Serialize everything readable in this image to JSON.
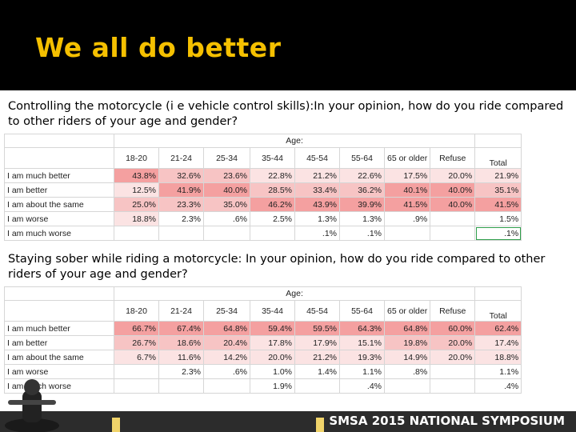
{
  "slide": {
    "title": "We all do better",
    "footer": "SMSA 2015 NATIONAL SYMPOSIUM"
  },
  "question1": "Controlling the motorcycle (i e vehicle control skills):In your opinion, how do you ride compared to other riders of your age and gender?",
  "question2": "Staying sober while riding a motorcycle: In your opinion, how do you ride compared to other riders of your age and gender?",
  "table1": {
    "age_header": "Age:",
    "columns": [
      "18-20",
      "21-24",
      "25-34",
      "35-44",
      "45-54",
      "55-64",
      "65 or older",
      "Refuse",
      "Total"
    ],
    "rows": [
      {
        "label": "I am much better",
        "cells": [
          "43.8%",
          "32.6%",
          "23.6%",
          "22.8%",
          "21.2%",
          "22.6%",
          "17.5%",
          "20.0%",
          "21.9%"
        ]
      },
      {
        "label": "I am better",
        "cells": [
          "12.5%",
          "41.9%",
          "40.0%",
          "28.5%",
          "33.4%",
          "36.2%",
          "40.1%",
          "40.0%",
          "35.1%"
        ]
      },
      {
        "label": "I am about the same",
        "cells": [
          "25.0%",
          "23.3%",
          "35.0%",
          "46.2%",
          "43.9%",
          "39.9%",
          "41.5%",
          "40.0%",
          "41.5%"
        ]
      },
      {
        "label": "I am worse",
        "cells": [
          "18.8%",
          "2.3%",
          ".6%",
          "2.5%",
          "1.3%",
          "1.3%",
          ".9%",
          "",
          "1.5%"
        ]
      },
      {
        "label": "I am much worse",
        "cells": [
          "",
          "",
          "",
          "",
          ".1%",
          ".1%",
          "",
          "",
          ".1%"
        ]
      }
    ]
  },
  "table2": {
    "age_header": "Age:",
    "columns": [
      "18-20",
      "21-24",
      "25-34",
      "35-44",
      "45-54",
      "55-64",
      "65 or older",
      "Refuse",
      "Total"
    ],
    "rows": [
      {
        "label": "I am much better",
        "cells": [
          "66.7%",
          "67.4%",
          "64.8%",
          "59.4%",
          "59.5%",
          "64.3%",
          "64.8%",
          "60.0%",
          "62.4%"
        ]
      },
      {
        "label": "I am better",
        "cells": [
          "26.7%",
          "18.6%",
          "20.4%",
          "17.8%",
          "17.9%",
          "15.1%",
          "19.8%",
          "20.0%",
          "17.4%"
        ]
      },
      {
        "label": "I am about the same",
        "cells": [
          "6.7%",
          "11.6%",
          "14.2%",
          "20.0%",
          "21.2%",
          "19.3%",
          "14.9%",
          "20.0%",
          "18.8%"
        ]
      },
      {
        "label": "I am worse",
        "cells": [
          "",
          "2.3%",
          ".6%",
          "1.0%",
          "1.4%",
          "1.1%",
          ".8%",
          "",
          "1.1%"
        ]
      },
      {
        "label": "I am much worse",
        "cells": [
          "",
          "",
          "",
          "1.9%",
          "",
          ".4%",
          "",
          "",
          ".4%"
        ]
      }
    ]
  },
  "shading": {
    "table1": [
      [
        "c1",
        "c2",
        "c2",
        "c3",
        "c3",
        "c3",
        "c3",
        "c3",
        "c3"
      ],
      [
        "c3",
        "c1",
        "c1",
        "c2",
        "c2",
        "c2",
        "c1",
        "c1",
        "c2"
      ],
      [
        "c2",
        "c2",
        "c2",
        "c1",
        "c1",
        "c1",
        "c1",
        "c1",
        "c1"
      ],
      [
        "c3",
        "cw",
        "cw",
        "cw",
        "cw",
        "cw",
        "cw",
        "cw",
        "cw"
      ],
      [
        "cw",
        "cw",
        "cw",
        "cw",
        "cw",
        "cw",
        "cw",
        "cw",
        "cw"
      ]
    ],
    "table2": [
      [
        "c1",
        "c1",
        "c1",
        "c1",
        "c1",
        "c1",
        "c1",
        "c1",
        "c1"
      ],
      [
        "c2",
        "c2",
        "c2",
        "c3",
        "c3",
        "c3",
        "c2",
        "c2",
        "c3"
      ],
      [
        "c3",
        "c3",
        "c3",
        "c3",
        "c3",
        "c3",
        "c3",
        "c3",
        "c3"
      ],
      [
        "cw",
        "cw",
        "cw",
        "cw",
        "cw",
        "cw",
        "cw",
        "cw",
        "cw"
      ],
      [
        "cw",
        "cw",
        "cw",
        "cw",
        "cw",
        "cw",
        "cw",
        "cw",
        "cw"
      ]
    ]
  },
  "colors": {
    "title": "#f5c000",
    "header_bg": "#000000",
    "strong": "#f4a0a0",
    "medium": "#f7c4c4",
    "light": "#fbe3e3"
  }
}
